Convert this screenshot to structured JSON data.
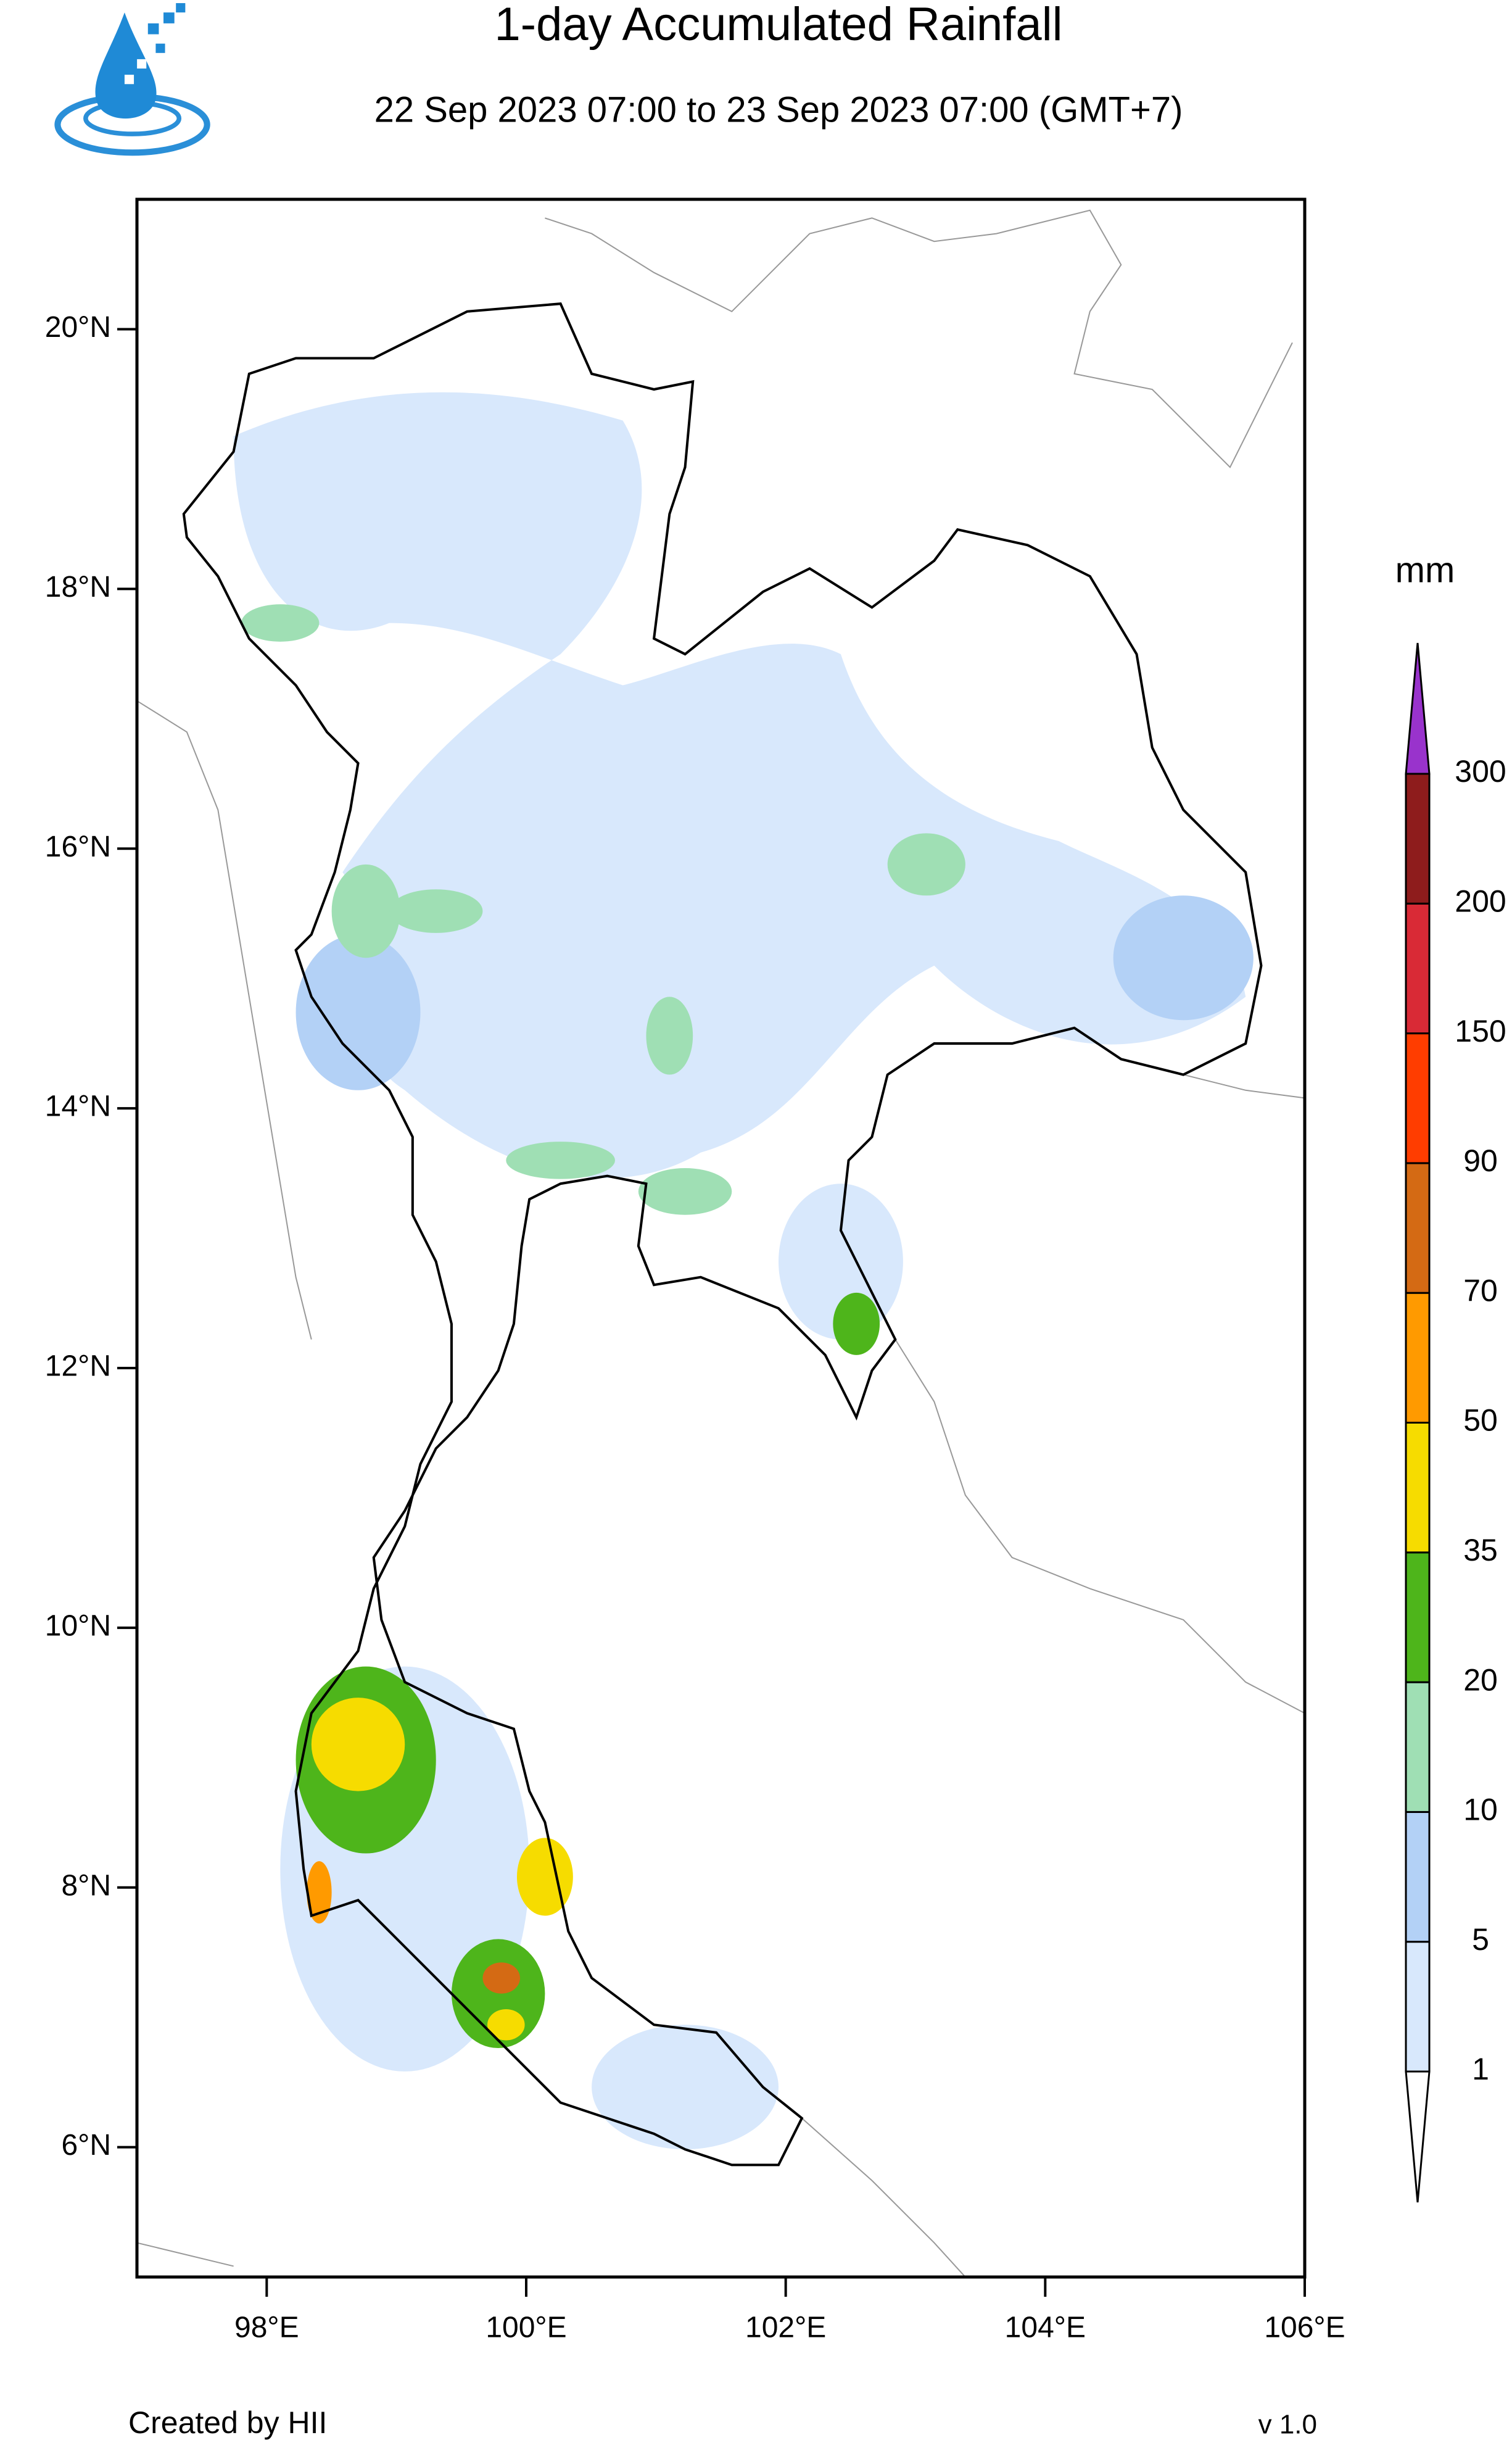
{
  "header": {
    "title": "1-day Accumulated Rainfall",
    "subtitle": "22 Sep 2023 07:00 to 23 Sep 2023 07:00 (GMT+7)"
  },
  "map": {
    "lon_range": [
      97,
      106
    ],
    "lat_range": [
      5,
      21
    ],
    "lon_ticks": [
      {
        "value": 98,
        "label": "98°E"
      },
      {
        "value": 100,
        "label": "100°E"
      },
      {
        "value": 102,
        "label": "102°E"
      },
      {
        "value": 104,
        "label": "104°E"
      },
      {
        "value": 106,
        "label": "106°E"
      }
    ],
    "lat_ticks": [
      {
        "value": 6,
        "label": "6°N"
      },
      {
        "value": 8,
        "label": "8°N"
      },
      {
        "value": 10,
        "label": "10°N"
      },
      {
        "value": 12,
        "label": "12°N"
      },
      {
        "value": 14,
        "label": "14°N"
      },
      {
        "value": 16,
        "label": "16°N"
      },
      {
        "value": 18,
        "label": "18°N"
      },
      {
        "value": 20,
        "label": "20°N"
      }
    ]
  },
  "legend": {
    "unit": "mm",
    "levels": [
      1,
      5,
      10,
      20,
      35,
      50,
      70,
      90,
      150,
      200,
      300
    ],
    "colors": [
      "#ffffff",
      "#d8e8fc",
      "#b3d1f6",
      "#9fdfb4",
      "#4eb51b",
      "#f6dc00",
      "#ff9a00",
      "#d46a14",
      "#ff3d00",
      "#d92a36",
      "#8e1c1c",
      "#9933cc"
    ]
  },
  "footer": {
    "credit": "Created by HII",
    "version": "v 1.0"
  }
}
